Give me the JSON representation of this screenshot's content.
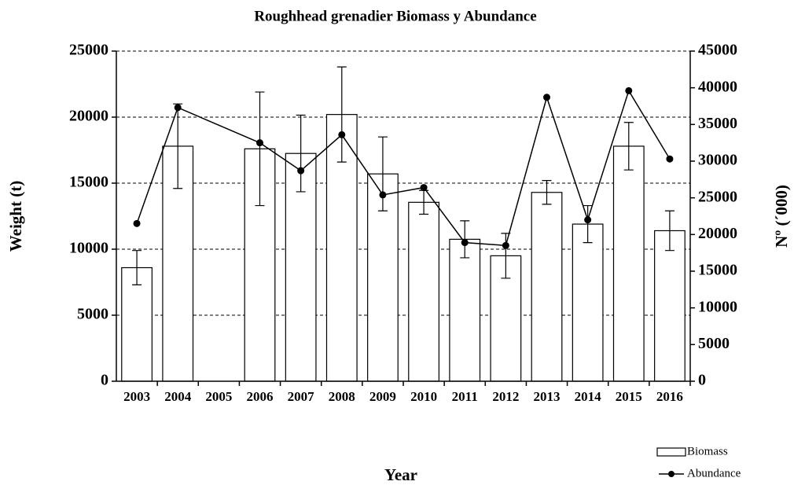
{
  "chart_data": {
    "type": "bar_line",
    "title": "Roughhead grenadier Biomass y Abundance",
    "xlabel": "Year",
    "ylabel": "Weight (t)",
    "y2label": "Nº (´000)",
    "categories": [
      "2003",
      "2004",
      "2005",
      "2006",
      "2007",
      "2008",
      "2009",
      "2010",
      "2011",
      "2012",
      "2013",
      "2014",
      "2015",
      "2016"
    ],
    "series": [
      {
        "name": "Biomass",
        "type": "bar",
        "color": "#ffffff",
        "values": [
          8600,
          17800,
          null,
          17600,
          17250,
          20200,
          15700,
          13550,
          10750,
          9500,
          14300,
          11900,
          17800,
          11400
        ],
        "errors": [
          1300,
          3200,
          null,
          4300,
          2900,
          3600,
          2800,
          900,
          1400,
          1700,
          900,
          1400,
          1800,
          1500
        ]
      },
      {
        "name": "Abundance",
        "type": "line",
        "axis": "y2",
        "color": "#000000",
        "values": [
          21500,
          37300,
          null,
          32500,
          28700,
          33600,
          25400,
          26400,
          18900,
          18500,
          38700,
          22000,
          39600,
          30300
        ]
      }
    ],
    "connect_gaps": true,
    "ylim": [
      0,
      25000
    ],
    "yticks": [
      0,
      5000,
      10000,
      15000,
      20000,
      25000
    ],
    "y2lim": [
      0,
      45000
    ],
    "y2ticks": [
      0,
      5000,
      10000,
      15000,
      20000,
      25000,
      30000,
      35000,
      40000,
      45000
    ],
    "grid": true,
    "legend": "bottom-right"
  }
}
